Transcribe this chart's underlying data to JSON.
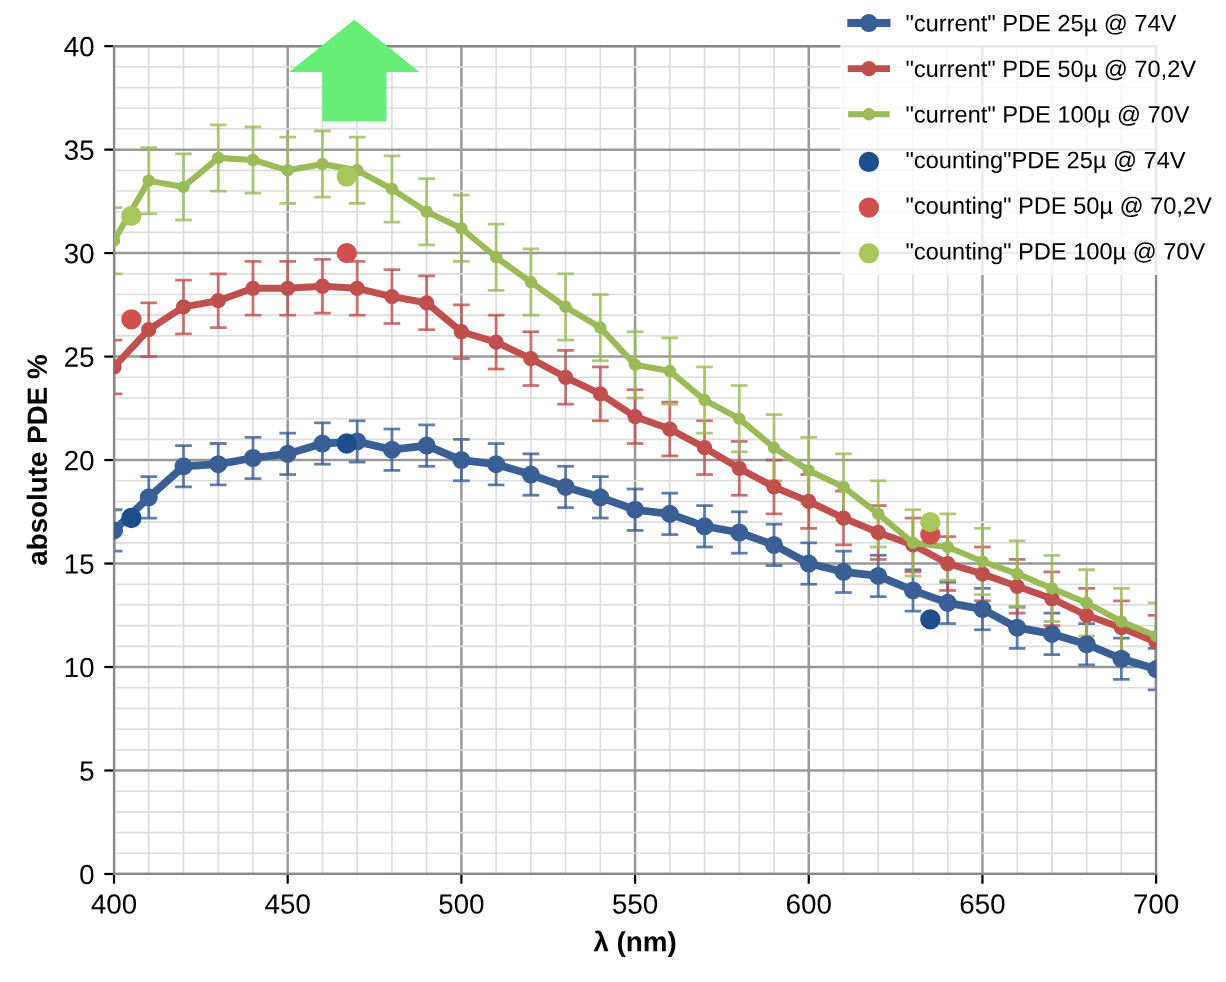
{
  "chart_data": {
    "type": "line",
    "xlabel": "λ (nm)",
    "ylabel": "absolute PDE %",
    "x": [
      400,
      410,
      420,
      430,
      440,
      450,
      460,
      470,
      480,
      490,
      500,
      510,
      520,
      530,
      540,
      550,
      560,
      570,
      580,
      590,
      600,
      610,
      620,
      630,
      640,
      650,
      660,
      670,
      680,
      690,
      700
    ],
    "xlim": [
      400,
      700
    ],
    "xticks": [
      400,
      450,
      500,
      550,
      600,
      650,
      700
    ],
    "ylim": [
      0,
      40
    ],
    "yticks": [
      0,
      5,
      10,
      15,
      20,
      25,
      30,
      35,
      40
    ],
    "grid": true,
    "legend": "top right",
    "marker": "circle",
    "series": [
      {
        "name": "\"current\" PDE 25µ @ 74V",
        "color": "#3a5f95",
        "values": [
          16.6,
          18.2,
          19.7,
          19.8,
          20.1,
          20.3,
          20.8,
          20.9,
          20.5,
          20.7,
          20.0,
          19.8,
          19.3,
          18.7,
          18.2,
          17.6,
          17.4,
          16.8,
          16.5,
          15.9,
          15.0,
          14.6,
          14.4,
          13.7,
          13.1,
          12.8,
          11.9,
          11.6,
          11.1,
          10.4,
          9.9
        ],
        "errors": [
          1,
          1,
          1,
          1,
          1,
          1,
          1,
          1,
          1,
          1,
          1,
          1,
          1,
          1,
          1,
          1,
          1,
          1,
          1,
          1,
          1,
          1,
          1,
          1,
          1,
          1,
          1,
          1,
          1,
          1,
          1
        ]
      },
      {
        "name": "\"current\" PDE 50µ @ 70,2V",
        "color": "#c0504d",
        "values": [
          24.5,
          26.3,
          27.4,
          27.7,
          28.3,
          28.3,
          28.4,
          28.3,
          27.9,
          27.6,
          26.2,
          25.7,
          24.9,
          24.0,
          23.2,
          22.1,
          21.5,
          20.6,
          19.6,
          18.7,
          18.0,
          17.2,
          16.5,
          15.9,
          15.0,
          14.5,
          13.9,
          13.3,
          12.5,
          11.9,
          11.2
        ],
        "errors": [
          1.3,
          1.3,
          1.3,
          1.3,
          1.3,
          1.3,
          1.3,
          1.3,
          1.3,
          1.3,
          1.3,
          1.3,
          1.3,
          1.3,
          1.3,
          1.3,
          1.3,
          1.3,
          1.3,
          1.3,
          1.3,
          1.3,
          1.3,
          1.3,
          1.3,
          1.3,
          1.3,
          1.3,
          1.3,
          1.3,
          1.3
        ]
      },
      {
        "name": "\"current\" PDE 100µ @ 70V",
        "color": "#9bbb59",
        "values": [
          30.6,
          33.5,
          33.2,
          34.6,
          34.5,
          34.0,
          34.3,
          34.0,
          33.1,
          32.0,
          31.2,
          29.8,
          28.6,
          27.4,
          26.4,
          24.6,
          24.3,
          22.9,
          22.0,
          20.6,
          19.5,
          18.7,
          17.4,
          16.0,
          15.8,
          15.1,
          14.5,
          13.8,
          13.1,
          12.2,
          11.5
        ],
        "errors": [
          1.6,
          1.6,
          1.6,
          1.6,
          1.6,
          1.6,
          1.6,
          1.6,
          1.6,
          1.6,
          1.6,
          1.6,
          1.6,
          1.6,
          1.6,
          1.6,
          1.6,
          1.6,
          1.6,
          1.6,
          1.6,
          1.6,
          1.6,
          1.6,
          1.6,
          1.6,
          1.6,
          1.6,
          1.6,
          1.6,
          1.6
        ]
      },
      {
        "type": "scatter",
        "name": "\"counting\"PDE 25µ @ 74V",
        "color": "#1f4e8c",
        "x": [
          405,
          467,
          635
        ],
        "values": [
          17.2,
          20.8,
          12.3
        ]
      },
      {
        "type": "scatter",
        "name": "\"counting\" PDE 50µ @ 70,2V",
        "color": "#d0504d",
        "x": [
          405,
          467,
          635
        ],
        "values": [
          26.8,
          30.0,
          16.4
        ]
      },
      {
        "type": "scatter",
        "name": "\"counting\" PDE 100µ @ 70V",
        "color": "#a9c75a",
        "x": [
          405,
          467,
          635
        ],
        "values": [
          31.8,
          33.7,
          17.0
        ]
      }
    ]
  }
}
